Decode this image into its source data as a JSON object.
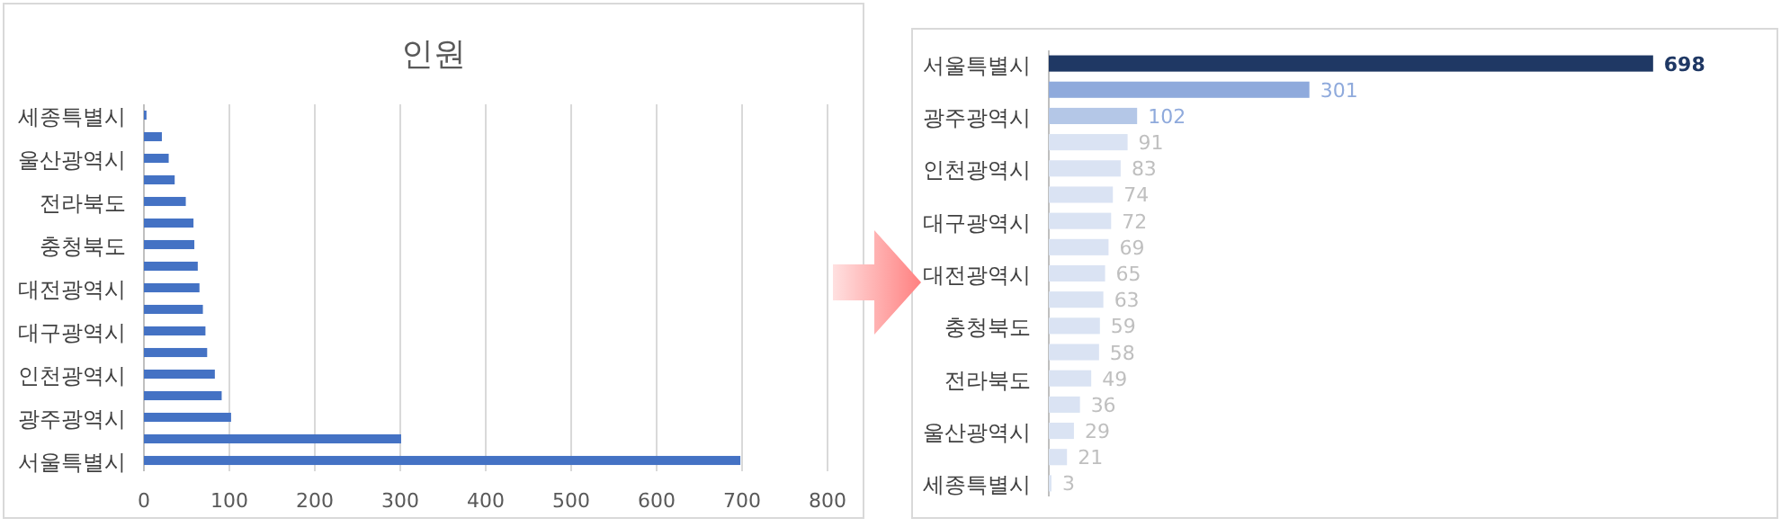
{
  "chart_data": [
    {
      "type": "bar",
      "title": "인원",
      "orientation": "horizontal",
      "categories": [
        "세종특별시",
        null,
        "울산광역시",
        null,
        "전라북도",
        null,
        "충청북도",
        null,
        "대전광역시",
        null,
        "대구광역시",
        null,
        "인천광역시",
        null,
        "광주광역시",
        null,
        "서울특별시"
      ],
      "values": [
        3,
        21,
        29,
        36,
        49,
        58,
        59,
        63,
        65,
        69,
        72,
        74,
        83,
        91,
        102,
        301,
        698
      ],
      "color": "#4472c4",
      "xlim": [
        0,
        800
      ],
      "xticks": [
        0,
        100,
        200,
        300,
        400,
        500,
        600,
        700,
        800
      ],
      "grid": "x"
    },
    {
      "type": "bar",
      "orientation": "horizontal",
      "categories": [
        "서울특별시",
        null,
        "광주광역시",
        null,
        "인천광역시",
        null,
        "대구광역시",
        null,
        "대전광역시",
        null,
        "충청북도",
        null,
        "전라북도",
        null,
        "울산광역시",
        null,
        "세종특별시"
      ],
      "values": [
        698,
        301,
        102,
        91,
        83,
        74,
        72,
        69,
        65,
        63,
        59,
        58,
        49,
        36,
        29,
        21,
        3
      ],
      "colors": [
        "#1f3864",
        "#8faadc",
        "#b4c7e7",
        "#dae3f3",
        "#dae3f3",
        "#dae3f3",
        "#dae3f3",
        "#dae3f3",
        "#dae3f3",
        "#dae3f3",
        "#dae3f3",
        "#dae3f3",
        "#dae3f3",
        "#dae3f3",
        "#dae3f3",
        "#dae3f3",
        "#dae3f3"
      ],
      "tick_labels": "y",
      "data_labels": true
    }
  ]
}
